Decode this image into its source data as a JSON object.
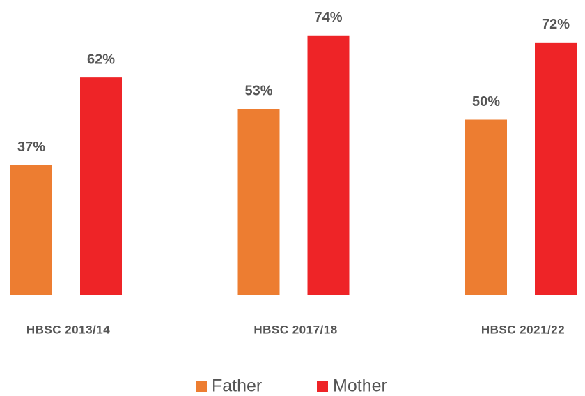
{
  "chart_data": {
    "type": "bar",
    "categories": [
      "HBSC 2013/14",
      "HBSC 2017/18",
      "HBSC 2021/22"
    ],
    "series": [
      {
        "name": "Father",
        "color": "#ed7d31",
        "values": [
          37,
          53,
          50
        ],
        "value_labels": [
          "37%",
          "53%",
          "50%"
        ]
      },
      {
        "name": "Mother",
        "color": "#ee2427",
        "values": [
          62,
          74,
          72
        ],
        "value_labels": [
          "62%",
          "74%",
          "72%"
        ]
      }
    ]
  }
}
